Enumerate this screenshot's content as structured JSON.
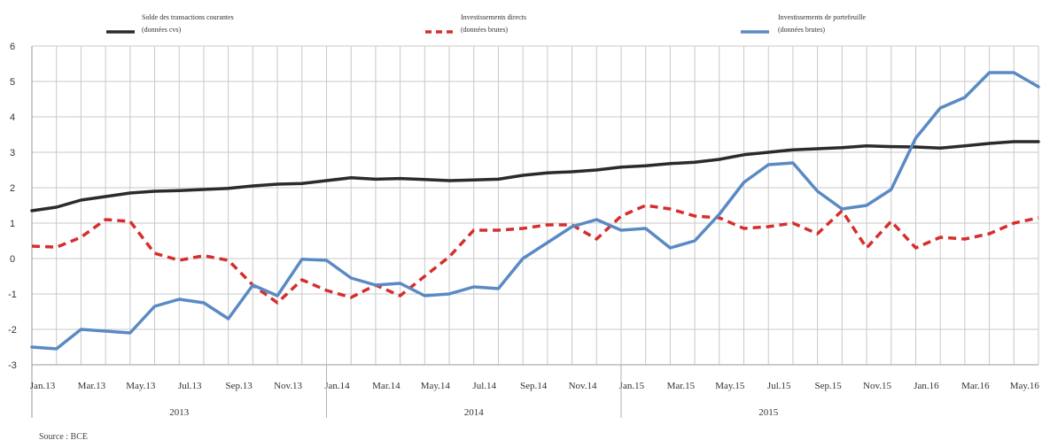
{
  "chart_data": {
    "type": "line",
    "ylim": [
      -3,
      6
    ],
    "yticks": [
      -3,
      -2,
      -1,
      0,
      1,
      2,
      3,
      4,
      5,
      6
    ],
    "grid": true,
    "legend_position": "top",
    "x": [
      "Jan.13",
      "Feb.13",
      "Mar.13",
      "Apr.13",
      "May.13",
      "Jun.13",
      "Jul.13",
      "Aug.13",
      "Sep.13",
      "Oct.13",
      "Nov.13",
      "Dec.13",
      "Jan.14",
      "Feb.14",
      "Mar.14",
      "Apr.14",
      "May.14",
      "Jun.14",
      "Jul.14",
      "Aug.14",
      "Sep.14",
      "Oct.14",
      "Nov.14",
      "Dec.14",
      "Jan.15",
      "Feb.15",
      "Mar.15",
      "Apr.15",
      "May.15",
      "Jun.15",
      "Jul.15",
      "Aug.15",
      "Sep.15",
      "Oct.15",
      "Nov.15",
      "Dec.15",
      "Jan.16",
      "Feb.16",
      "Mar.16",
      "Apr.16",
      "May.16",
      "Jun.16"
    ],
    "tick_labels": [
      "Jan.13",
      "Mar.13",
      "May.13",
      "Jul.13",
      "Sep.13",
      "Nov.13",
      "Jan.14",
      "Mar.14",
      "May.14",
      "Jul.14",
      "Sep.14",
      "Nov.14",
      "Jan.15",
      "Mar.15",
      "May.15",
      "Jul.15",
      "Sep.15",
      "Nov.15",
      "Jan.16",
      "Mar.16",
      "May.16"
    ],
    "year_groups": [
      "2013",
      "2014",
      "2015"
    ],
    "series": [
      {
        "name": "Solde des transactions courantes (données cvs)",
        "legend_lines": [
          "Solde des transactions courantes",
          "(données cvs)"
        ],
        "color": "#2b2b2b",
        "style": "solid",
        "values": [
          1.35,
          1.45,
          1.65,
          1.75,
          1.85,
          1.9,
          1.92,
          1.95,
          1.98,
          2.05,
          2.1,
          2.12,
          2.2,
          2.28,
          2.24,
          2.26,
          2.23,
          2.2,
          2.22,
          2.24,
          2.35,
          2.42,
          2.45,
          2.5,
          2.58,
          2.62,
          2.68,
          2.72,
          2.8,
          2.93,
          3.0,
          3.07,
          3.1,
          3.13,
          3.18,
          3.16,
          3.15,
          3.12,
          3.18,
          3.25,
          3.3,
          3.3
        ]
      },
      {
        "name": "Investissements directs (données brutes)",
        "legend_lines": [
          "Investissements directs",
          "(données brutes)"
        ],
        "color": "#d62e2e",
        "style": "dashed",
        "values": [
          0.35,
          0.32,
          0.6,
          1.1,
          1.05,
          0.15,
          -0.05,
          0.08,
          -0.05,
          -0.75,
          -1.25,
          -0.6,
          -0.9,
          -1.1,
          -0.75,
          -1.05,
          -0.5,
          0.05,
          0.8,
          0.8,
          0.85,
          0.95,
          0.95,
          0.55,
          1.2,
          1.5,
          1.4,
          1.2,
          1.15,
          0.85,
          0.9,
          1.0,
          0.7,
          1.35,
          0.3,
          1.05,
          0.3,
          0.6,
          0.55,
          0.7,
          1.0,
          1.15
        ]
      },
      {
        "name": "Investissements de portefeuille (données brutes)",
        "legend_lines": [
          "Investissements de portefeuille",
          "(données brutes)"
        ],
        "color": "#5a8ac4",
        "style": "solid",
        "values": [
          -2.5,
          -2.55,
          -2.0,
          -2.05,
          -2.1,
          -1.35,
          -1.15,
          -1.25,
          -1.7,
          -0.75,
          -1.05,
          -0.02,
          -0.05,
          -0.55,
          -0.75,
          -0.7,
          -1.05,
          -1.0,
          -0.8,
          -0.85,
          0.0,
          0.45,
          0.9,
          1.1,
          0.8,
          0.85,
          0.3,
          0.5,
          1.25,
          2.15,
          2.65,
          2.7,
          1.9,
          1.4,
          1.5,
          1.95,
          3.4,
          4.25,
          4.55,
          5.25,
          5.25,
          4.85
        ]
      }
    ]
  },
  "source_label": "Source : BCE"
}
